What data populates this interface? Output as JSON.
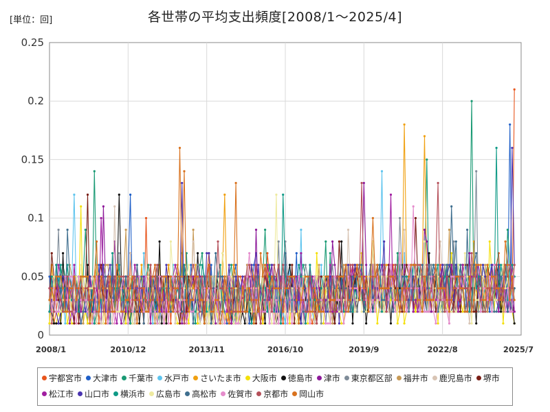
{
  "chart_data": {
    "type": "line",
    "title": "各世帯の平均支出頻度[2008/1～2025/4]",
    "unit_label": "[単位：回]",
    "xlabel": "",
    "ylabel": "",
    "ylim": [
      0,
      0.25
    ],
    "yticks": [
      "0",
      "0.05",
      "0.1",
      "0.15",
      "0.2",
      "0.25"
    ],
    "x_range": [
      "2008/1",
      "2025/7"
    ],
    "xticks": [
      "2008/1",
      "2010/12",
      "2013/11",
      "2016/10",
      "2019/9",
      "2022/8",
      "2025/7"
    ],
    "grid": true,
    "legend_position": "bottom",
    "series": [
      {
        "name": "宇都宮市",
        "color": "#e8551c",
        "baseline": 0.032,
        "spikes": [
          [
            2025.25,
            0.21
          ],
          [
            2011.6,
            0.1
          ]
        ]
      },
      {
        "name": "大津市",
        "color": "#1f5fc8",
        "baseline": 0.035,
        "spikes": [
          [
            2025.1,
            0.18
          ],
          [
            2011.0,
            0.12
          ]
        ]
      },
      {
        "name": "千葉市",
        "color": "#1a9a74",
        "baseline": 0.035,
        "spikes": [
          [
            2023.7,
            0.2
          ],
          [
            2009.7,
            0.14
          ],
          [
            2022.0,
            0.15
          ]
        ]
      },
      {
        "name": "水戸市",
        "color": "#5ec4ee",
        "baseline": 0.035,
        "spikes": [
          [
            2020.3,
            0.14
          ],
          [
            2008.9,
            0.12
          ]
        ]
      },
      {
        "name": "さいたま市",
        "color": "#f0a010",
        "baseline": 0.035,
        "spikes": [
          [
            2021.2,
            0.18
          ],
          [
            2021.9,
            0.17
          ],
          [
            2014.5,
            0.12
          ]
        ]
      },
      {
        "name": "大阪市",
        "color": "#f4e00a",
        "baseline": 0.025,
        "spikes": [
          [
            2009.2,
            0.11
          ]
        ]
      },
      {
        "name": "徳島市",
        "color": "#111111",
        "baseline": 0.03,
        "spikes": [
          [
            2010.6,
            0.12
          ],
          [
            2018.8,
            0.08
          ]
        ]
      },
      {
        "name": "津市",
        "color": "#8e1a9a",
        "baseline": 0.035,
        "spikes": [
          [
            2019.7,
            0.13
          ],
          [
            2010.0,
            0.11
          ]
        ]
      },
      {
        "name": "東京都区部",
        "color": "#7f8c99",
        "baseline": 0.035,
        "spikes": [
          [
            2023.8,
            0.14
          ],
          [
            2016.5,
            0.08
          ]
        ]
      },
      {
        "name": "福井市",
        "color": "#c79a56",
        "baseline": 0.035,
        "spikes": [
          [
            2022.8,
            0.09
          ]
        ]
      },
      {
        "name": "鹿児島市",
        "color": "#d8c4b4",
        "baseline": 0.03,
        "spikes": [
          [
            2010.4,
            0.11
          ]
        ]
      },
      {
        "name": "堺市",
        "color": "#7a1e16",
        "baseline": 0.033,
        "spikes": [
          [
            2009.4,
            0.12
          ],
          [
            2021.6,
            0.1
          ]
        ]
      },
      {
        "name": "松江市",
        "color": "#a01ea0",
        "baseline": 0.035,
        "spikes": [
          [
            2020.7,
            0.12
          ],
          [
            2009.9,
            0.1
          ]
        ]
      },
      {
        "name": "山口市",
        "color": "#4a34b0",
        "baseline": 0.035,
        "spikes": [
          [
            2012.9,
            0.13
          ],
          [
            2025.2,
            0.16
          ]
        ]
      },
      {
        "name": "横浜市",
        "color": "#0f9a86",
        "baseline": 0.035,
        "spikes": [
          [
            2024.6,
            0.16
          ],
          [
            2016.7,
            0.12
          ]
        ]
      },
      {
        "name": "広島市",
        "color": "#eeeaa0",
        "baseline": 0.03,
        "spikes": [
          [
            2016.4,
            0.12
          ]
        ]
      },
      {
        "name": "高松市",
        "color": "#3f6f8f",
        "baseline": 0.033,
        "spikes": [
          [
            2022.9,
            0.11
          ]
        ]
      },
      {
        "name": "佐賀市",
        "color": "#e58ccc",
        "baseline": 0.03,
        "spikes": [
          [
            2021.5,
            0.11
          ]
        ]
      },
      {
        "name": "京都市",
        "color": "#b5505a",
        "baseline": 0.035,
        "spikes": [
          [
            2019.6,
            0.13
          ],
          [
            2022.4,
            0.13
          ]
        ]
      },
      {
        "name": "岡山市",
        "color": "#d9721e",
        "baseline": 0.035,
        "spikes": [
          [
            2012.8,
            0.16
          ],
          [
            2013.0,
            0.14
          ],
          [
            2014.9,
            0.13
          ]
        ]
      }
    ]
  }
}
